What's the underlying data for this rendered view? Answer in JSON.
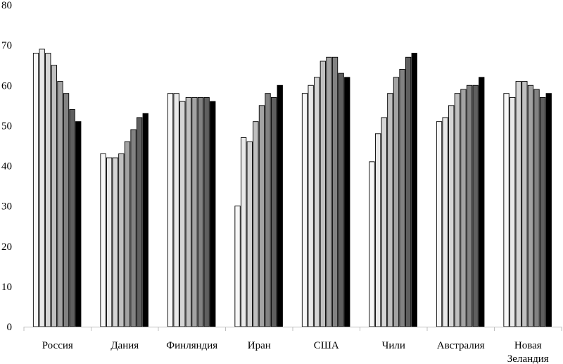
{
  "chart_data": {
    "type": "bar",
    "title": "",
    "xlabel": "",
    "ylabel": "",
    "ylim": [
      0,
      80
    ],
    "yticks": [
      0,
      10,
      20,
      30,
      40,
      50,
      60,
      70,
      80
    ],
    "grid": false,
    "legend": "none",
    "categories": [
      "Россия",
      "Дания",
      "Финляндия",
      "Иран",
      "США",
      "Чили",
      "Австралия",
      "Новая Зеландия"
    ],
    "category_label_lines": [
      [
        "Россия"
      ],
      [
        "Дания"
      ],
      [
        "Финляндия"
      ],
      [
        "Иран"
      ],
      [
        "США"
      ],
      [
        "Чили"
      ],
      [
        "Австралия"
      ],
      [
        "Новая",
        "Зеландия"
      ]
    ],
    "series": [
      {
        "color": "#f7f7f7",
        "values": [
          68,
          43,
          58,
          30,
          58,
          41,
          51,
          58
        ]
      },
      {
        "color": "#e9e9e9",
        "values": [
          69,
          42,
          58,
          47,
          60,
          48,
          52,
          57
        ]
      },
      {
        "color": "#d5d5d5",
        "values": [
          68,
          42,
          56,
          46,
          62,
          52,
          55,
          61
        ]
      },
      {
        "color": "#c0c0c0",
        "values": [
          65,
          43,
          57,
          51,
          66,
          58,
          58,
          61
        ]
      },
      {
        "color": "#a3a3a3",
        "values": [
          61,
          46,
          57,
          55,
          67,
          62,
          59,
          60
        ]
      },
      {
        "color": "#828282",
        "values": [
          58,
          49,
          57,
          58,
          67,
          64,
          60,
          59
        ]
      },
      {
        "color": "#5f5f5f",
        "values": [
          54,
          52,
          57,
          57,
          63,
          67,
          60,
          57
        ]
      },
      {
        "color": "#3f3a2b",
        "values": [
          51,
          53,
          56,
          60,
          62,
          68,
          62,
          58
        ]
      }
    ],
    "last_series_color_override": "#000000"
  }
}
